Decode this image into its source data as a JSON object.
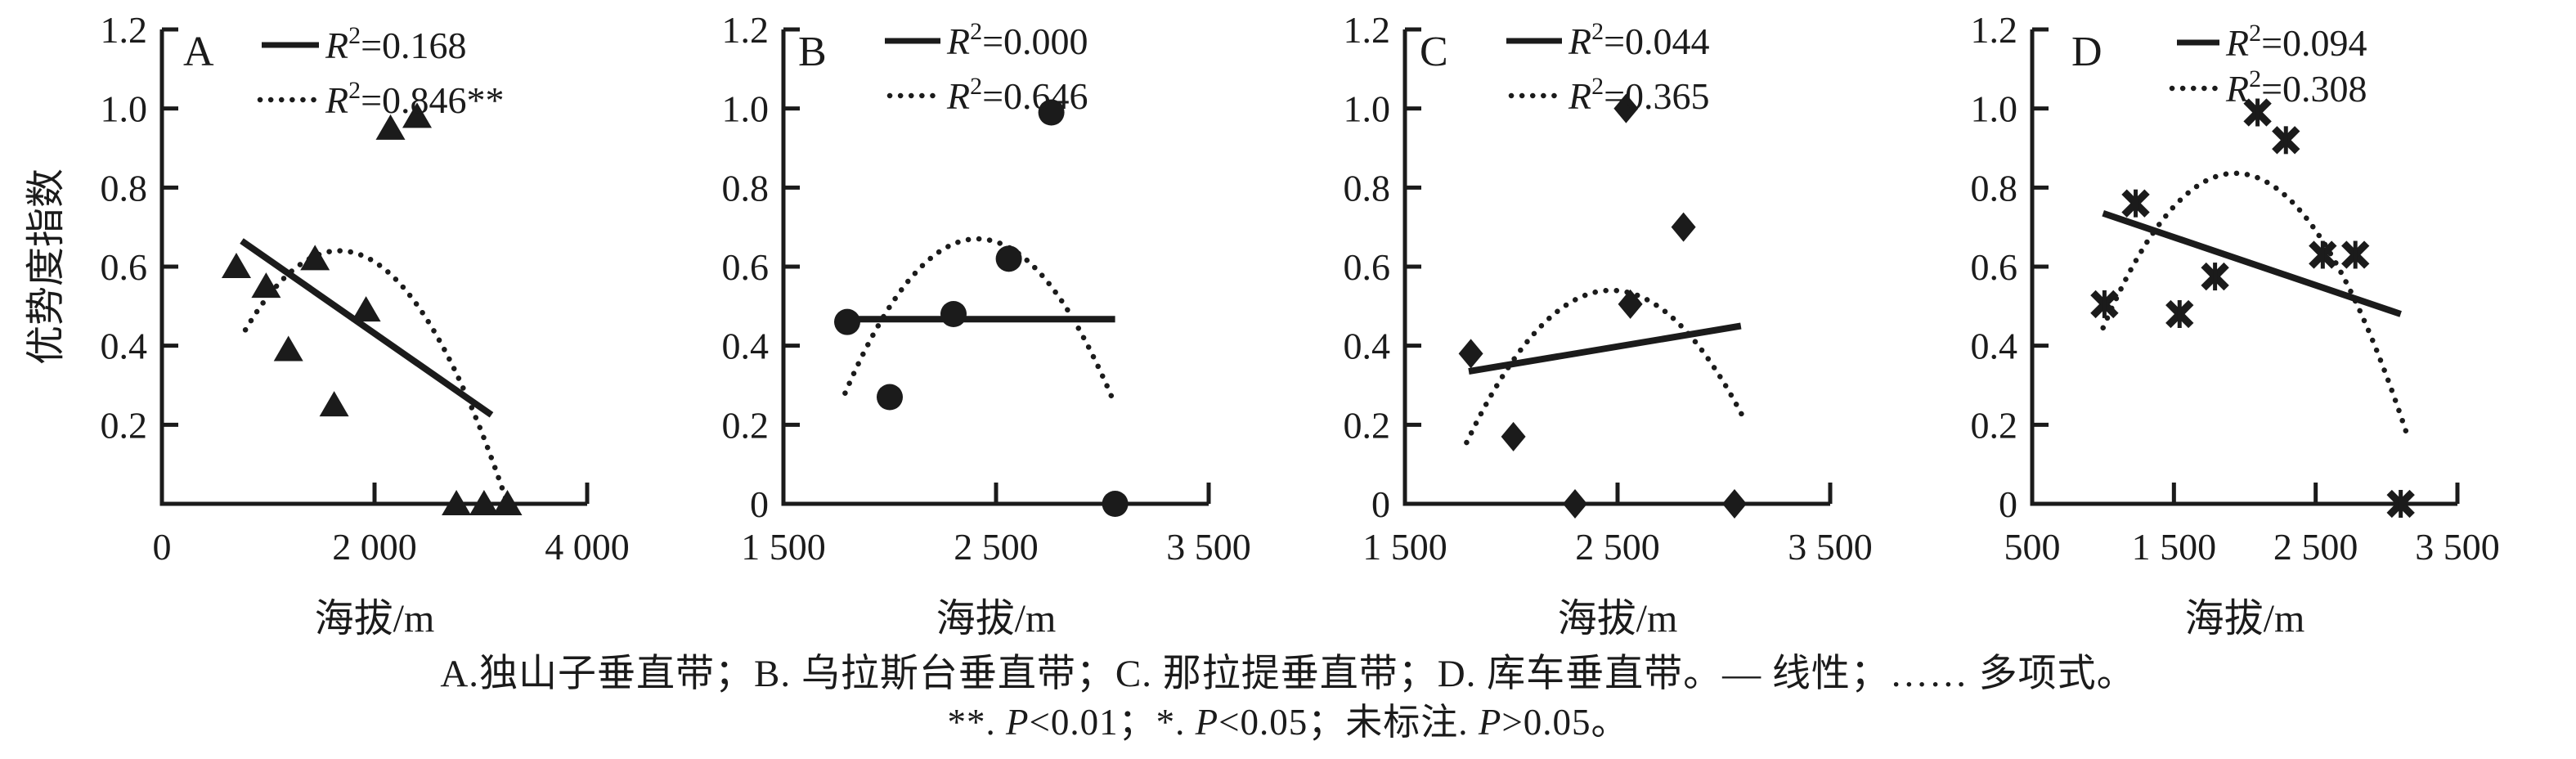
{
  "figure": {
    "background": "#ffffff",
    "ink_color": "#1b1b1b"
  },
  "caption": {
    "line1": "A.独山子垂直带；B. 乌拉斯台垂直带；C. 那拉提垂直带；D. 库车垂直带。— 线性；…… 多项式。",
    "line2_segments": [
      {
        "text": "**. ",
        "italic": false
      },
      {
        "text": "P",
        "italic": true
      },
      {
        "text": "<0.01；*. ",
        "italic": false
      },
      {
        "text": "P",
        "italic": true
      },
      {
        "text": "<0.05；未标注. ",
        "italic": false
      },
      {
        "text": "P",
        "italic": true
      },
      {
        "text": ">0.05。",
        "italic": false
      }
    ]
  },
  "chart_data": {
    "type": "scatter",
    "ylabel": "优势度指数",
    "xlabel": "海拔/m",
    "ylim": [
      0,
      1.2
    ],
    "grid": false,
    "legend_position": "top-inside",
    "panels": [
      {
        "label": "A",
        "name": "独山子垂直带",
        "marker": "triangle",
        "x_range": [
          0,
          4000
        ],
        "x_ticks": [
          {
            "v": 0,
            "t": "0"
          },
          {
            "v": 2000,
            "t": "2 000"
          },
          {
            "v": 4000,
            "t": "4 000"
          }
        ],
        "y_ticks": [
          {
            "v": 1.2,
            "t": "1.2"
          },
          {
            "v": 1.0,
            "t": "1.0"
          },
          {
            "v": 0.8,
            "t": "0.8"
          },
          {
            "v": 0.6,
            "t": "0.6"
          },
          {
            "v": 0.4,
            "t": "0.4"
          },
          {
            "v": 0.2,
            "t": "0.2"
          }
        ],
        "points": [
          [
            700,
            0.6
          ],
          [
            980,
            0.55
          ],
          [
            1190,
            0.39
          ],
          [
            1440,
            0.62
          ],
          [
            1620,
            0.25
          ],
          [
            1920,
            0.49
          ],
          [
            2150,
            0.95
          ],
          [
            2400,
            0.98
          ],
          [
            2770,
            0
          ],
          [
            3030,
            0
          ],
          [
            3250,
            0
          ]
        ],
        "linear": {
          "x1": 750,
          "y1": 0.665,
          "x2": 3100,
          "y2": 0.225,
          "r2": "0.168",
          "suffix": ""
        },
        "poly": {
          "x0": 785,
          "y0": 0.44,
          "xp": 1650,
          "yp": 0.64,
          "x1": 3250,
          "y1": 0.0,
          "r2": "0.846",
          "suffix": "**"
        }
      },
      {
        "label": "B",
        "name": "乌拉斯台垂直带",
        "marker": "circle",
        "x_range": [
          1500,
          3500
        ],
        "x_ticks": [
          {
            "v": 1500,
            "t": "1 500"
          },
          {
            "v": 2500,
            "t": "2 500"
          },
          {
            "v": 3500,
            "t": "3 500"
          }
        ],
        "y_ticks": [
          {
            "v": 1.2,
            "t": "1.2"
          },
          {
            "v": 1.0,
            "t": "1.0"
          },
          {
            "v": 0.8,
            "t": "0.8"
          },
          {
            "v": 0.6,
            "t": "0.6"
          },
          {
            "v": 0.4,
            "t": "0.4"
          },
          {
            "v": 0.2,
            "t": "0.2"
          },
          {
            "v": 0,
            "t": "0"
          }
        ],
        "points": [
          [
            1800,
            0.46
          ],
          [
            2000,
            0.27
          ],
          [
            2300,
            0.48
          ],
          [
            2560,
            0.62
          ],
          [
            2760,
            0.99
          ],
          [
            3060,
            0
          ]
        ],
        "linear": {
          "x1": 1790,
          "y1": 0.467,
          "x2": 3060,
          "y2": 0.467,
          "r2": "0.000",
          "suffix": ""
        },
        "poly": {
          "x0": 1790,
          "y0": 0.28,
          "xp": 2430,
          "yp": 0.67,
          "x1": 3060,
          "y1": 0.25,
          "r2": "0.646",
          "suffix": ""
        }
      },
      {
        "label": "C",
        "name": "那拉提垂直带",
        "marker": "diamond",
        "x_range": [
          1500,
          3500
        ],
        "x_ticks": [
          {
            "v": 1500,
            "t": "1 500"
          },
          {
            "v": 2500,
            "t": "2 500"
          },
          {
            "v": 3500,
            "t": "3 500"
          }
        ],
        "y_ticks": [
          {
            "v": 1.2,
            "t": "1.2"
          },
          {
            "v": 1.0,
            "t": "1.0"
          },
          {
            "v": 0.8,
            "t": "0.8"
          },
          {
            "v": 0.6,
            "t": "0.6"
          },
          {
            "v": 0.4,
            "t": "0.4"
          },
          {
            "v": 0.2,
            "t": "0.2"
          },
          {
            "v": 0,
            "t": "0"
          }
        ],
        "points": [
          [
            1810,
            0.38
          ],
          [
            2010,
            0.17
          ],
          [
            2300,
            0
          ],
          [
            2540,
            1.0
          ],
          [
            2560,
            0.505
          ],
          [
            2810,
            0.7
          ],
          [
            3050,
            0
          ]
        ],
        "linear": {
          "x1": 1800,
          "y1": 0.335,
          "x2": 3080,
          "y2": 0.45,
          "r2": "0.044",
          "suffix": ""
        },
        "poly": {
          "x0": 1790,
          "y0": 0.155,
          "xp": 2480,
          "yp": 0.54,
          "x1": 3090,
          "y1": 0.22,
          "r2": "0.365",
          "suffix": ""
        }
      },
      {
        "label": "D",
        "name": "库车垂直带",
        "marker": "asterisk",
        "x_range": [
          500,
          3500
        ],
        "x_ticks": [
          {
            "v": 500,
            "t": "500"
          },
          {
            "v": 1500,
            "t": "1 500"
          },
          {
            "v": 2500,
            "t": "2 500"
          },
          {
            "v": 3500,
            "t": "3 500"
          }
        ],
        "y_ticks": [
          {
            "v": 1.2,
            "t": "1.2"
          },
          {
            "v": 1.0,
            "t": "1.0"
          },
          {
            "v": 0.8,
            "t": "0.8"
          },
          {
            "v": 0.6,
            "t": "0.6"
          },
          {
            "v": 0.4,
            "t": "0.4"
          },
          {
            "v": 0.2,
            "t": "0.2"
          },
          {
            "v": 0,
            "t": "0"
          }
        ],
        "points": [
          [
            1010,
            0.505
          ],
          [
            1230,
            0.76
          ],
          [
            1540,
            0.48
          ],
          [
            1790,
            0.575
          ],
          [
            2090,
            0.99
          ],
          [
            2290,
            0.92
          ],
          [
            2550,
            0.63
          ],
          [
            2780,
            0.63
          ],
          [
            3100,
            0
          ]
        ],
        "linear": {
          "x1": 1000,
          "y1": 0.735,
          "x2": 3100,
          "y2": 0.48,
          "r2": "0.094",
          "suffix": ""
        },
        "poly": {
          "x0": 1000,
          "y0": 0.445,
          "xp": 2050,
          "yp": 0.83,
          "x1": 3140,
          "y1": 0.18,
          "r2": "0.308",
          "suffix": ""
        }
      }
    ]
  }
}
